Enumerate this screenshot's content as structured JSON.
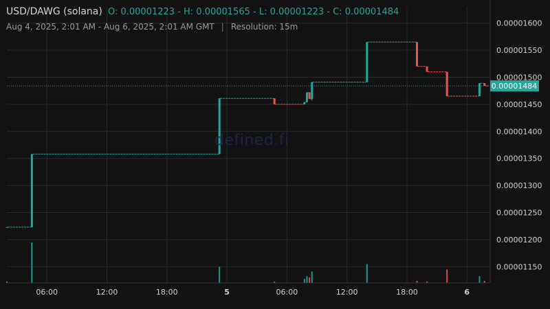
{
  "header": {
    "pair": "USD/DAWG (solana)",
    "ohlc": "O: 0.00001223 - H: 0.00001565 - L: 0.00001223 - C: 0.00001484",
    "range": "Aug 4, 2025, 2:01 AM - Aug 6, 2025, 2:01 AM GMT",
    "separator": "|",
    "resolution": "Resolution: 15m"
  },
  "watermark": "defined.fi",
  "colors": {
    "up": "#26a69a",
    "down": "#ef5350",
    "background": "#131313",
    "grid": "#2a2a2a",
    "axis_text": "#d0d0d0",
    "last_price_bg": "#26a69a"
  },
  "chart_data": {
    "type": "candlestick",
    "y_ticks": [
      "0.00001600",
      "0.00001550",
      "0.00001500",
      "0.00001450",
      "0.00001400",
      "0.00001350",
      "0.00001300",
      "0.00001250",
      "0.00001200",
      "0.00001150"
    ],
    "ylim": [
      1.12e-05,
      1.63e-05
    ],
    "x_ticks": [
      {
        "label": "06:00",
        "hour": 6,
        "bold": false
      },
      {
        "label": "12:00",
        "hour": 12,
        "bold": false
      },
      {
        "label": "18:00",
        "hour": 18,
        "bold": false
      },
      {
        "label": "5",
        "hour": 24,
        "bold": true
      },
      {
        "label": "06:00",
        "hour": 30,
        "bold": false
      },
      {
        "label": "12:00",
        "hour": 36,
        "bold": false
      },
      {
        "label": "18:00",
        "hour": 42,
        "bold": false
      },
      {
        "label": "6",
        "hour": 48,
        "bold": true
      }
    ],
    "xlim_hours": [
      2.0,
      50.25
    ],
    "last_price": "0.00001484",
    "last_price_value": 1.484e-05,
    "candles": [
      {
        "t": 2.0,
        "o": 1.223e-05,
        "h": 1.223e-05,
        "l": 1.223e-05,
        "c": 1.223e-05,
        "v": 2
      },
      {
        "t": 4.5,
        "o": 1.223e-05,
        "h": 1.358e-05,
        "l": 1.223e-05,
        "c": 1.358e-05,
        "v": 60
      },
      {
        "t": 23.25,
        "o": 1.358e-05,
        "h": 1.461e-05,
        "l": 1.358e-05,
        "c": 1.461e-05,
        "v": 24
      },
      {
        "t": 28.75,
        "o": 1.461e-05,
        "h": 1.461e-05,
        "l": 1.45e-05,
        "c": 1.45e-05,
        "v": 2
      },
      {
        "t": 31.75,
        "o": 1.45e-05,
        "h": 1.454e-05,
        "l": 1.45e-05,
        "c": 1.454e-05,
        "v": 6
      },
      {
        "t": 32.0,
        "o": 1.454e-05,
        "h": 1.472e-05,
        "l": 1.454e-05,
        "c": 1.472e-05,
        "v": 10
      },
      {
        "t": 32.25,
        "o": 1.472e-05,
        "h": 1.472e-05,
        "l": 1.46e-05,
        "c": 1.46e-05,
        "v": 8
      },
      {
        "t": 32.5,
        "o": 1.46e-05,
        "h": 1.491e-05,
        "l": 1.457e-05,
        "c": 1.491e-05,
        "v": 17
      },
      {
        "t": 38.0,
        "o": 1.491e-05,
        "h": 1.565e-05,
        "l": 1.491e-05,
        "c": 1.565e-05,
        "v": 28
      },
      {
        "t": 43.0,
        "o": 1.565e-05,
        "h": 1.565e-05,
        "l": 1.52e-05,
        "c": 1.52e-05,
        "v": 3
      },
      {
        "t": 44.0,
        "o": 1.52e-05,
        "h": 1.52e-05,
        "l": 1.51e-05,
        "c": 1.51e-05,
        "v": 2
      },
      {
        "t": 46.0,
        "o": 1.51e-05,
        "h": 1.51e-05,
        "l": 1.465e-05,
        "c": 1.465e-05,
        "v": 20
      },
      {
        "t": 49.25,
        "o": 1.465e-05,
        "h": 1.489e-05,
        "l": 1.465e-05,
        "c": 1.489e-05,
        "v": 10
      },
      {
        "t": 49.75,
        "o": 1.489e-05,
        "h": 1.489e-05,
        "l": 1.484e-05,
        "c": 1.484e-05,
        "v": 3
      }
    ]
  }
}
